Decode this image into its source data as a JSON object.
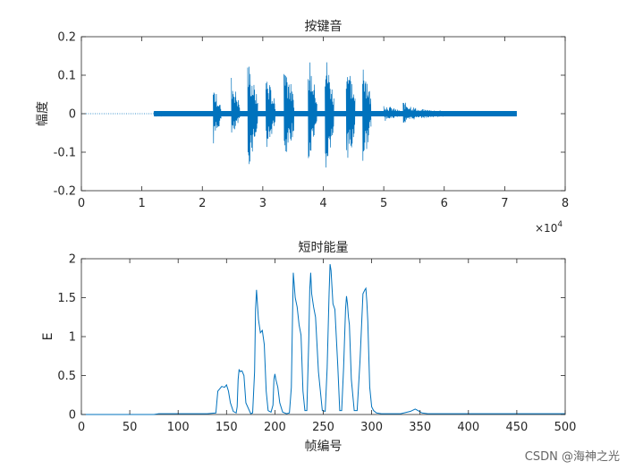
{
  "chart_data": [
    {
      "type": "line",
      "title": "按键音",
      "xlabel": "",
      "ylabel": "幅度",
      "xlim": [
        0,
        80000
      ],
      "ylim": [
        -0.2,
        0.2
      ],
      "xticks": [
        0,
        10000,
        20000,
        30000,
        40000,
        50000,
        60000,
        70000,
        80000
      ],
      "xtick_labels": [
        "0",
        "1",
        "2",
        "3",
        "4",
        "5",
        "6",
        "7",
        "8"
      ],
      "yticks": [
        -0.2,
        -0.1,
        0,
        0.1,
        0.2
      ],
      "ytick_labels": [
        "-0.2",
        "-0.1",
        "0",
        "0.1",
        "0.2"
      ],
      "x_exponent_label": "×10",
      "x_exponent_power": "4",
      "color": "#0072BD",
      "silence_end": 12000,
      "noise_floor": {
        "x": [
          12000,
          72000
        ],
        "amplitude": 0.007
      },
      "envelope_segments": [
        {
          "x": [
            12000,
            22000
          ],
          "upper": 0.008,
          "lower": -0.008
        },
        {
          "x": [
            21800,
            23100
          ],
          "upper": 0.075,
          "lower": -0.08
        },
        {
          "x": [
            24800,
            26200
          ],
          "upper": 0.1,
          "lower": -0.07
        },
        {
          "x": [
            27500,
            29200
          ],
          "upper": 0.145,
          "lower": -0.153
        },
        {
          "x": [
            30500,
            32100
          ],
          "upper": 0.11,
          "lower": -0.105
        },
        {
          "x": [
            33500,
            35200
          ],
          "upper": 0.158,
          "lower": -0.16
        },
        {
          "x": [
            37500,
            39000
          ],
          "upper": 0.163,
          "lower": -0.158
        },
        {
          "x": [
            40300,
            41800
          ],
          "upper": 0.17,
          "lower": -0.172
        },
        {
          "x": [
            43800,
            45300
          ],
          "upper": 0.165,
          "lower": -0.16
        },
        {
          "x": [
            46500,
            47900
          ],
          "upper": 0.168,
          "lower": -0.145
        },
        {
          "x": [
            50000,
            53000
          ],
          "upper": 0.025,
          "lower": -0.02
        },
        {
          "x": [
            53200,
            56200
          ],
          "upper": 0.032,
          "lower": -0.028
        },
        {
          "x": [
            56200,
            64000
          ],
          "upper": 0.012,
          "lower": -0.012
        },
        {
          "x": [
            65500,
            72000
          ],
          "upper": 0.004,
          "lower": -0.004
        }
      ]
    },
    {
      "type": "line",
      "title": "短时能量",
      "xlabel": "帧编号",
      "ylabel": "E",
      "xlim": [
        0,
        500
      ],
      "ylim": [
        0,
        2
      ],
      "xticks": [
        0,
        50,
        100,
        150,
        200,
        250,
        300,
        350,
        400,
        450,
        500
      ],
      "xtick_labels": [
        "0",
        "50",
        "100",
        "150",
        "200",
        "250",
        "300",
        "350",
        "400",
        "450",
        "500"
      ],
      "yticks": [
        0,
        0.5,
        1,
        1.5,
        2
      ],
      "ytick_labels": [
        "0",
        "0.5",
        "1",
        "1.5",
        "2"
      ],
      "color": "#0072BD",
      "x": [
        0,
        75,
        80,
        100,
        130,
        139,
        141,
        145,
        148,
        150,
        152,
        154,
        157,
        160,
        161,
        162,
        163,
        164,
        166,
        168,
        170,
        175,
        177,
        179,
        180,
        181,
        183,
        185,
        187,
        189,
        191,
        193,
        196,
        198,
        199,
        200,
        201,
        203,
        205,
        208,
        212,
        215,
        217,
        218,
        219,
        221,
        223,
        225,
        227,
        229,
        231,
        233,
        235,
        236,
        237,
        238,
        240,
        242,
        245,
        249,
        252,
        254,
        256,
        257,
        258,
        260,
        262,
        265,
        267,
        269,
        271,
        273,
        274,
        275,
        276,
        277,
        279,
        282,
        285,
        288,
        291,
        293,
        294,
        295,
        296,
        298,
        300,
        302,
        305,
        310,
        320,
        330,
        340,
        345,
        348,
        352,
        358,
        365,
        380,
        400,
        420,
        440,
        450,
        460,
        480,
        500
      ],
      "y": [
        0,
        0,
        0.01,
        0.01,
        0.01,
        0.02,
        0.3,
        0.36,
        0.35,
        0.38,
        0.3,
        0.15,
        0.04,
        0.02,
        0.1,
        0.45,
        0.58,
        0.55,
        0.56,
        0.5,
        0.15,
        0.01,
        0.02,
        0.55,
        1.35,
        1.6,
        1.22,
        1.05,
        1.08,
        0.9,
        0.3,
        0.05,
        0.03,
        0.12,
        0.45,
        0.52,
        0.45,
        0.35,
        0.15,
        0.03,
        0.01,
        0.02,
        0.35,
        1.1,
        1.82,
        1.5,
        1.38,
        1.15,
        1.02,
        0.3,
        0.05,
        0.05,
        0.95,
        1.6,
        1.82,
        1.55,
        1.38,
        1.25,
        0.55,
        0.05,
        0.04,
        0.6,
        1.55,
        1.93,
        1.85,
        1.42,
        1.35,
        0.62,
        0.05,
        0.05,
        0.6,
        1.35,
        1.52,
        1.42,
        1.25,
        1.15,
        0.45,
        0.05,
        0.05,
        0.7,
        1.55,
        1.6,
        1.62,
        1.45,
        1.2,
        0.35,
        0.1,
        0.05,
        0.02,
        0.01,
        0.01,
        0.01,
        0.04,
        0.07,
        0.05,
        0.02,
        0.01,
        0.01,
        0.01,
        0.01,
        0.01,
        0.01,
        0.01,
        0.01,
        0.01,
        0.01
      ]
    }
  ],
  "watermark": "CSDN @海神之光"
}
